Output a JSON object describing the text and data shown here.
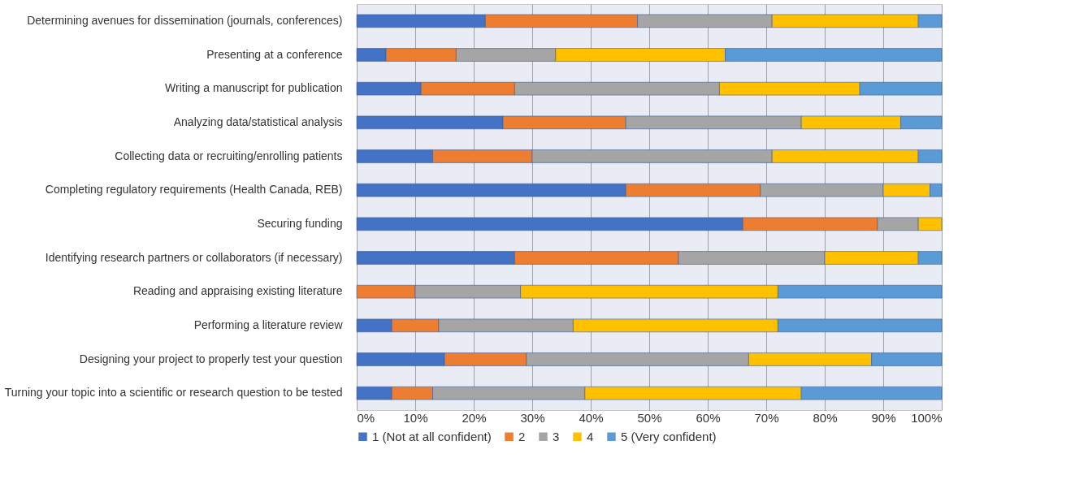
{
  "chart_data": {
    "type": "bar",
    "orientation": "horizontal",
    "stacked": true,
    "categories": [
      "Determining avenues for dissemination (journals, conferences)",
      "Presenting at a conference",
      "Writing a manuscript for publication",
      "Analyzing data/statistical analysis",
      "Collecting data or recruiting/enrolling patients",
      "Completing regulatory requirements (Health Canada, REB)",
      "Securing funding",
      "Identifying research partners or collaborators (if necessary)",
      "Reading and appraising existing literature",
      "Performing a literature review",
      "Designing your project to properly test your question",
      "Turning your topic into a scientific or research question to be tested"
    ],
    "series": [
      {
        "name": "1 (Not at all confident)",
        "color": "#4472c4",
        "values": [
          22,
          5,
          11,
          25,
          13,
          46,
          66,
          27,
          0,
          6,
          15,
          6
        ]
      },
      {
        "name": "2",
        "color": "#ed7d31",
        "values": [
          26,
          12,
          16,
          21,
          17,
          23,
          23,
          28,
          10,
          8,
          14,
          7
        ]
      },
      {
        "name": "3",
        "color": "#a5a5a5",
        "values": [
          23,
          17,
          35,
          30,
          41,
          21,
          7,
          25,
          18,
          23,
          38,
          26
        ]
      },
      {
        "name": "4",
        "color": "#ffc000",
        "values": [
          25,
          29,
          24,
          17,
          25,
          8,
          4,
          16,
          44,
          35,
          21,
          37
        ]
      },
      {
        "name": "5 (Very confident)",
        "color": "#5b9bd5",
        "values": [
          4,
          37,
          14,
          7,
          4,
          2,
          0,
          4,
          28,
          28,
          12,
          24
        ]
      }
    ],
    "xlim": [
      0,
      100
    ],
    "xticks": [
      {
        "value": 0,
        "label": "0%"
      },
      {
        "value": 10,
        "label": "10%"
      },
      {
        "value": 20,
        "label": "20%"
      },
      {
        "value": 30,
        "label": "30%"
      },
      {
        "value": 40,
        "label": "40%"
      },
      {
        "value": 50,
        "label": "50%"
      },
      {
        "value": 60,
        "label": "60%"
      },
      {
        "value": 70,
        "label": "70%"
      },
      {
        "value": 80,
        "label": "80%"
      },
      {
        "value": 90,
        "label": "90%"
      },
      {
        "value": 100,
        "label": "100%"
      }
    ],
    "grid": "x",
    "legend": "bottom"
  }
}
